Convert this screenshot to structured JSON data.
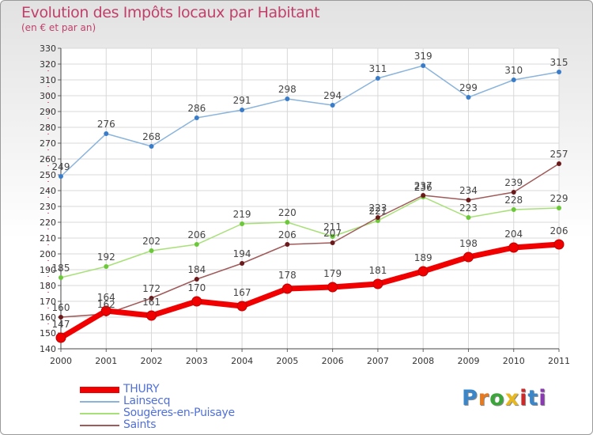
{
  "title": "Evolution des Impôts locaux par Habitant",
  "subtitle": "(en € et par an)",
  "logo": {
    "text": "Proxiti",
    "colors": [
      "#3a86c8",
      "#e87a1c",
      "#3aa63a",
      "#e8b820",
      "#cc2a2a",
      "#3a86c8",
      "#8a3ab0"
    ]
  },
  "chart_data": {
    "type": "line",
    "title": "Evolution des Impôts locaux par Habitant",
    "subtitle": "(en € et par an)",
    "x": [
      "2000",
      "2001",
      "2002",
      "2003",
      "2004",
      "2005",
      "2006",
      "2007",
      "2008",
      "2009",
      "2010",
      "2011"
    ],
    "ylim": [
      140,
      330
    ],
    "ytick_step": 10,
    "grid": true,
    "legend_position": "bottom-left",
    "series": [
      {
        "name": "Lainsecq",
        "color": "#8ab4dc",
        "marker": "#3a7cc8",
        "width": 1.5,
        "values": [
          249,
          276,
          268,
          286,
          291,
          298,
          294,
          311,
          319,
          299,
          310,
          315
        ]
      },
      {
        "name": "Sougères-en-Puisaye",
        "color": "#a8e078",
        "marker": "#6cc83a",
        "width": 1.5,
        "values": [
          185,
          192,
          202,
          206,
          219,
          220,
          211,
          221,
          236,
          223,
          228,
          229
        ]
      },
      {
        "name": "Saints",
        "color": "#a05a5a",
        "marker": "#6a1a1a",
        "width": 1.5,
        "values": [
          160,
          162,
          172,
          184,
          194,
          206,
          207,
          223,
          237,
          234,
          239,
          257
        ]
      },
      {
        "name": "THURY",
        "color": "#f00000",
        "marker": "#f00000",
        "width": 7,
        "values": [
          147,
          164,
          161,
          170,
          167,
          178,
          179,
          181,
          189,
          198,
          204,
          206
        ]
      }
    ],
    "legend_order": [
      "THURY",
      "Lainsecq",
      "Sougères-en-Puisaye",
      "Saints"
    ]
  }
}
